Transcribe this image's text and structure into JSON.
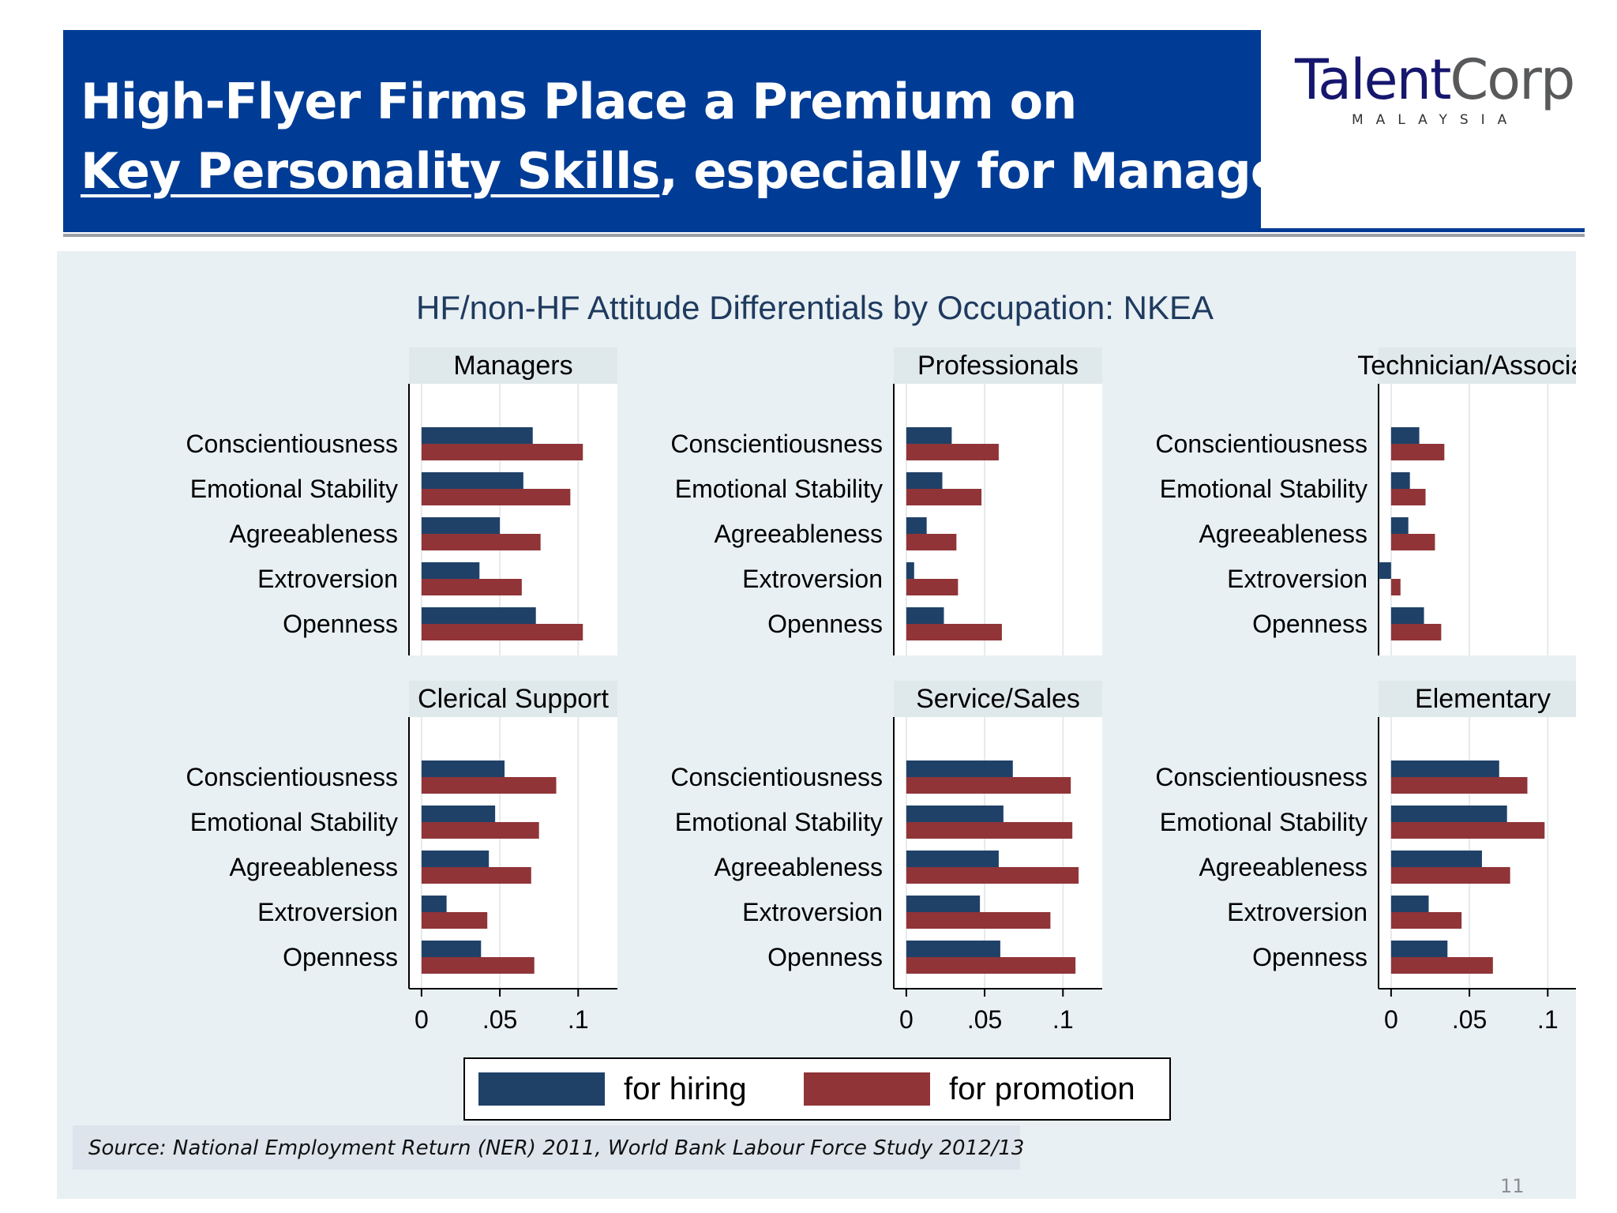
{
  "header": {
    "title_line1": "High-Flyer Firms Place a Premium on",
    "title_line2_underlined": "Key Personality Skills",
    "title_line2_rest": ", especially for Managers"
  },
  "logo": {
    "part1": "Talent",
    "part2": "Corp",
    "subtitle": "MALAYSIA"
  },
  "source": "Source: National Employment Return (NER) 2011, World Bank Labour Force Study 2012/13",
  "page_number": "11",
  "colors": {
    "hiring": "#1f4168",
    "promotion": "#903438",
    "header": "#003c96",
    "panel": "#e8f0f3",
    "plot_bg": "#ffffff",
    "strip_bg": "#dfe8ea"
  },
  "chart_data": {
    "type": "bar",
    "orientation": "horizontal",
    "title": "HF/non-HF Attitude Differentials by Occupation: NKEA",
    "categories": [
      "Conscientiousness",
      "Emotional Stability",
      "Agreeableness",
      "Extroversion",
      "Openness"
    ],
    "xlim": [
      -0.008,
      0.126
    ],
    "xticks": [
      0,
      0.05,
      0.1
    ],
    "xtick_labels": [
      "0",
      ".05",
      ".1"
    ],
    "grid": true,
    "legend": {
      "position": "bottom-center",
      "entries": [
        "for hiring",
        "for promotion"
      ]
    },
    "panels": [
      {
        "name": "Managers",
        "series": [
          {
            "name": "for hiring",
            "values": [
              0.071,
              0.065,
              0.05,
              0.037,
              0.073
            ]
          },
          {
            "name": "for promotion",
            "values": [
              0.103,
              0.095,
              0.076,
              0.064,
              0.103
            ]
          }
        ]
      },
      {
        "name": "Professionals",
        "series": [
          {
            "name": "for hiring",
            "values": [
              0.029,
              0.023,
              0.013,
              0.005,
              0.024
            ]
          },
          {
            "name": "for promotion",
            "values": [
              0.059,
              0.048,
              0.032,
              0.033,
              0.061
            ]
          }
        ]
      },
      {
        "name": "Technician/Associate",
        "series": [
          {
            "name": "for hiring",
            "values": [
              0.018,
              0.012,
              0.011,
              -0.008,
              0.021
            ]
          },
          {
            "name": "for promotion",
            "values": [
              0.034,
              0.022,
              0.028,
              0.006,
              0.032
            ]
          }
        ]
      },
      {
        "name": "Clerical Support",
        "series": [
          {
            "name": "for hiring",
            "values": [
              0.053,
              0.047,
              0.043,
              0.016,
              0.038
            ]
          },
          {
            "name": "for promotion",
            "values": [
              0.086,
              0.075,
              0.07,
              0.042,
              0.072
            ]
          }
        ]
      },
      {
        "name": "Service/Sales",
        "series": [
          {
            "name": "for hiring",
            "values": [
              0.068,
              0.062,
              0.059,
              0.047,
              0.06
            ]
          },
          {
            "name": "for promotion",
            "values": [
              0.105,
              0.106,
              0.11,
              0.092,
              0.108
            ]
          }
        ]
      },
      {
        "name": "Elementary",
        "series": [
          {
            "name": "for hiring",
            "values": [
              0.069,
              0.074,
              0.058,
              0.024,
              0.036
            ]
          },
          {
            "name": "for promotion",
            "values": [
              0.087,
              0.098,
              0.076,
              0.045,
              0.065
            ]
          }
        ]
      }
    ]
  }
}
